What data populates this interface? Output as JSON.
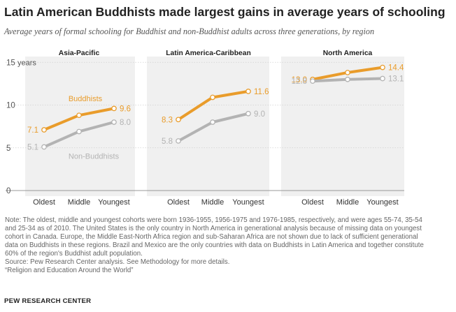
{
  "title": "Latin American Buddhists made largest gains in average years of schooling",
  "subtitle": "Average years of formal schooling for Buddhist and non-Buddhist adults across three generations, by region",
  "colors": {
    "buddhists": "#e99c2b",
    "non_buddhists": "#b3b3b3",
    "panel_bg": "#f0f0f0",
    "grid": "#d0d0d0"
  },
  "chart_data": {
    "type": "line",
    "y_unit_label": "years",
    "ylim": [
      0,
      15
    ],
    "yticks": [
      "0",
      "5",
      "10",
      "15"
    ],
    "grid": true,
    "panels": [
      {
        "title": "Asia-Pacific",
        "categories": [
          "Oldest",
          "Middle",
          "Youngest"
        ],
        "series": [
          {
            "name": "Buddhists",
            "values": [
              7.1,
              8.8,
              9.6
            ],
            "labels": [
              "7.1",
              "",
              "9.6"
            ]
          },
          {
            "name": "Non-Buddhists",
            "values": [
              5.1,
              6.9,
              8.0
            ],
            "labels": [
              "5.1",
              "",
              "8.0"
            ]
          }
        ]
      },
      {
        "title": "Latin America-Caribbean",
        "categories": [
          "Oldest",
          "Middle",
          "Youngest"
        ],
        "series": [
          {
            "values": [
              8.3,
              10.9,
              11.6
            ],
            "labels": [
              "8.3",
              "",
              "11.6"
            ]
          },
          {
            "values": [
              5.8,
              8.0,
              9.0
            ],
            "labels": [
              "5.8",
              "",
              "9.0"
            ]
          }
        ]
      },
      {
        "title": "North America",
        "categories": [
          "Oldest",
          "Middle",
          "Youngest"
        ],
        "series": [
          {
            "values": [
              13.0,
              13.8,
              14.4
            ],
            "labels": [
              "13.0",
              "",
              "14.4"
            ]
          },
          {
            "values": [
              12.8,
              13.0,
              13.1
            ],
            "labels": [
              "12.8",
              "",
              "13.1"
            ]
          }
        ]
      }
    ]
  },
  "note_lines": [
    "Note: The oldest, middle and youngest cohorts were born 1936-1955, 1956-1975 and 1976-1985, respectively, and were ages 55-74, 35-54",
    "and 25-34 as of 2010. The United States is the only country in North America in generational analysis because of missing data on youngest",
    "cohort in Canada. Europe, the Middle East-North Africa region and sub-Saharan Africa are not shown due to lack of sufficient generational",
    "data on Buddhists in these regions. Brazil and Mexico are the only countries with data on Buddhists in Latin America and together constitute",
    "60% of the region's Buddhist adult population.",
    "Source: Pew Research Center analysis. See Methodology for more details.",
    "“Religion and Education Around the World”"
  ],
  "logo": "PEW RESEARCH CENTER"
}
